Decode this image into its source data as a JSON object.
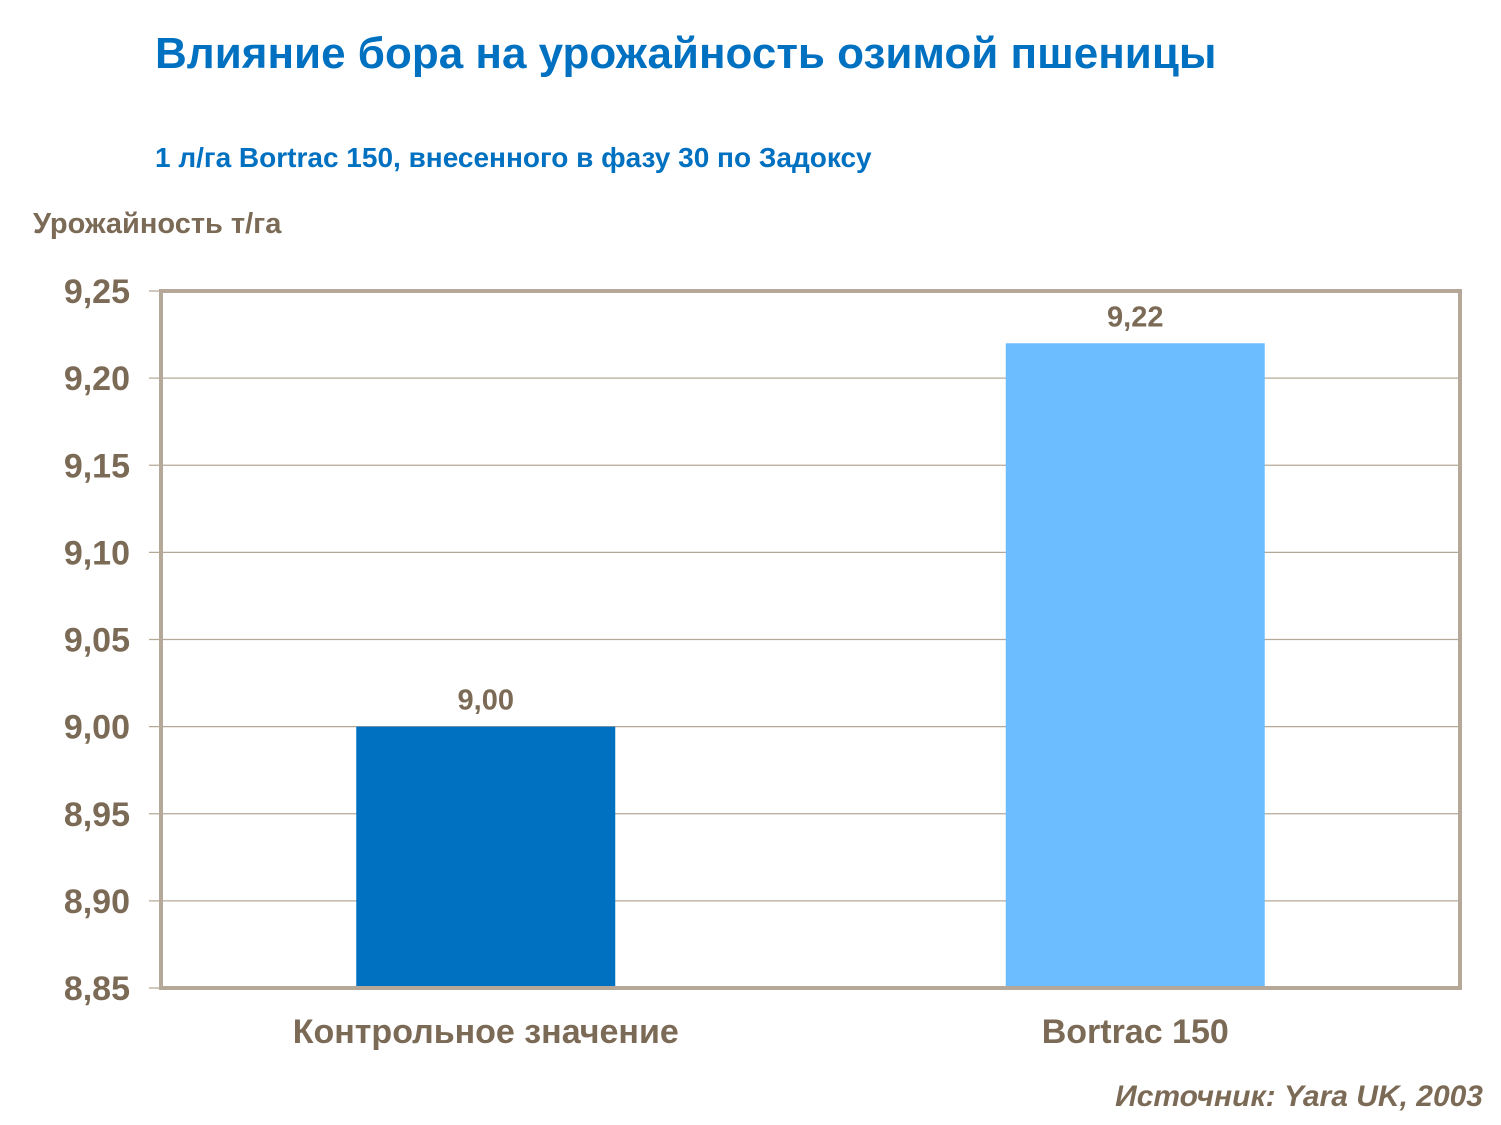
{
  "title": "Влияние бора на урожайность озимой пшеницы",
  "subtitle": "1 л/га Bortrac 150, внесенного в фазу 30 по Задоксу",
  "source": "Источник: Yara UK, 2003",
  "chart_data": {
    "type": "bar",
    "title": "Влияние бора на урожайность озимой пшеницы",
    "subtitle": "1 л/га Bortrac 150, внесенного в фазу 30 по Задоксу",
    "ylabel": "Урожайность т/га",
    "xlabel": "",
    "categories": [
      "Контрольное значение",
      "Bortrac 150"
    ],
    "values": [
      9.0,
      9.22
    ],
    "data_labels": [
      "9,00",
      "9,22"
    ],
    "colors": [
      "#0070c0",
      "#6bbdff"
    ],
    "ylim": [
      8.85,
      9.25
    ],
    "yticks": [
      8.85,
      8.9,
      8.95,
      9.0,
      9.05,
      9.1,
      9.15,
      9.2,
      9.25
    ],
    "ytick_labels": [
      "8,85",
      "8,90",
      "8,95",
      "9,00",
      "9,05",
      "9,10",
      "9,15",
      "9,20",
      "9,25"
    ],
    "grid": true,
    "legend": "none"
  }
}
